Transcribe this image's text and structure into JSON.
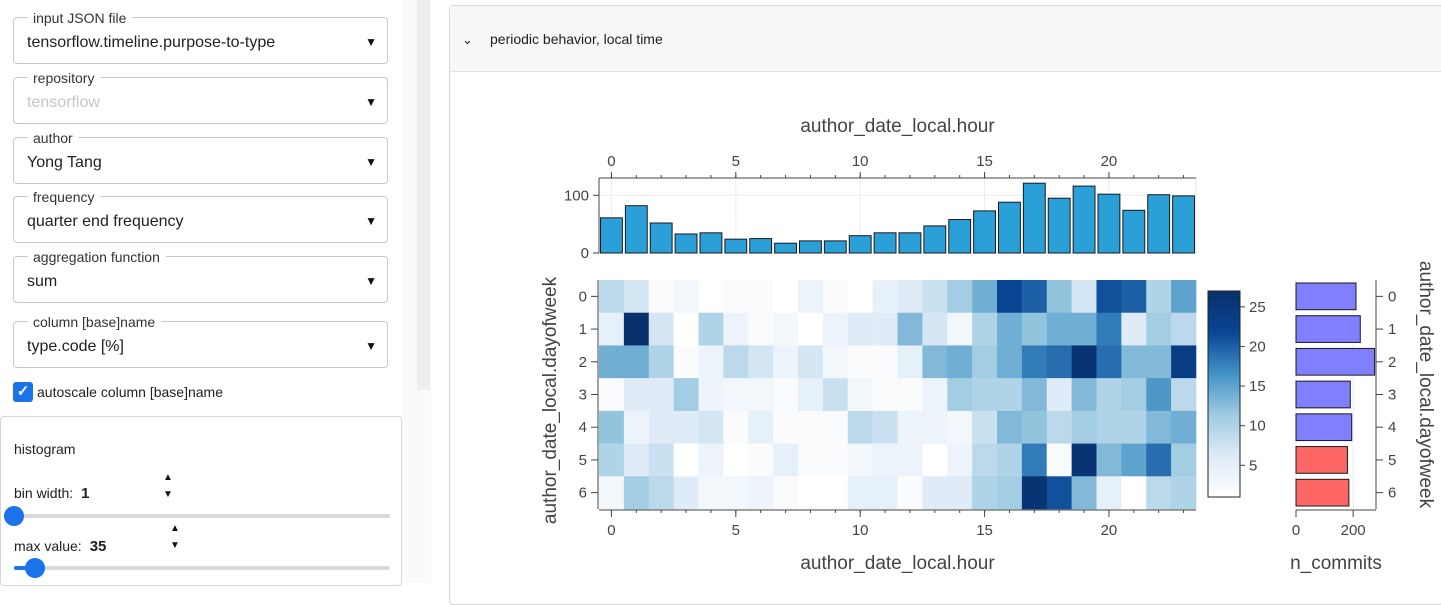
{
  "sidebar": {
    "fields": [
      {
        "label": "input JSON file",
        "value": "tensorflow.timeline.purpose-to-type",
        "disabled": false
      },
      {
        "label": "repository",
        "value": "tensorflow",
        "disabled": true
      },
      {
        "label": "author",
        "value": "Yong Tang",
        "disabled": false
      },
      {
        "label": "frequency",
        "value": "quarter end frequency",
        "disabled": false
      },
      {
        "label": "aggregation function",
        "value": "sum",
        "disabled": false
      },
      {
        "label": "column [base]name",
        "value": "type.code [%]",
        "disabled": false
      }
    ],
    "caret": "▼",
    "autoscale": {
      "checked": true,
      "mark": "✓",
      "label": "autoscale column [base]name"
    },
    "histogram": {
      "title": "histogram",
      "bin_width": {
        "label": "bin width:",
        "value": "1",
        "slider_fraction": 0.0
      },
      "max_value": {
        "label": "max value:",
        "value": "35",
        "slider_fraction": 0.055
      }
    },
    "spin_up": "▲",
    "spin_down": "▼"
  },
  "panel": {
    "chevron": "⌄",
    "title": "periodic behavior, local time"
  },
  "colors": {
    "accent": "#1a73e8",
    "bar": "#2b9fd8",
    "weekday": "#8080ff",
    "weekend": "#ff6666"
  },
  "chart_data": [
    {
      "type": "bar",
      "title": "author_date_local.hour",
      "x": [
        0,
        1,
        2,
        3,
        4,
        5,
        6,
        7,
        8,
        9,
        10,
        11,
        12,
        13,
        14,
        15,
        16,
        17,
        18,
        19,
        20,
        21,
        22,
        23
      ],
      "values": [
        61,
        82,
        52,
        33,
        35,
        24,
        25,
        17,
        21,
        21,
        30,
        35,
        35,
        47,
        58,
        73,
        88,
        121,
        95,
        116,
        102,
        74,
        101,
        99
      ],
      "xticks": [
        0,
        5,
        10,
        15,
        20
      ],
      "yticks": [
        0,
        100
      ],
      "ylim": [
        0,
        130
      ]
    },
    {
      "type": "heatmap",
      "xlabel": "author_date_local.hour",
      "ylabel": "author_date_local.dayofweek",
      "x": [
        0,
        1,
        2,
        3,
        4,
        5,
        6,
        7,
        8,
        9,
        10,
        11,
        12,
        13,
        14,
        15,
        16,
        17,
        18,
        19,
        20,
        21,
        22,
        23
      ],
      "y": [
        0,
        1,
        2,
        3,
        4,
        5,
        6
      ],
      "xticks": [
        0,
        5,
        10,
        15,
        20
      ],
      "values": [
        [
          9,
          7,
          2,
          3,
          1,
          2,
          2,
          1,
          4,
          2,
          1,
          5,
          6,
          8,
          11,
          14,
          22,
          20,
          12,
          7,
          21,
          20,
          10,
          15
        ],
        [
          5,
          27,
          7,
          1,
          10,
          4,
          2,
          3,
          1,
          4,
          6,
          6,
          13,
          7,
          3,
          10,
          14,
          12,
          14,
          14,
          18,
          6,
          11,
          9
        ],
        [
          14,
          14,
          10,
          2,
          4,
          9,
          7,
          4,
          7,
          3,
          2,
          2,
          5,
          13,
          14,
          11,
          14,
          18,
          19,
          26,
          19,
          13,
          13,
          24
        ],
        [
          2,
          6,
          6,
          11,
          4,
          3,
          3,
          2,
          5,
          8,
          3,
          2,
          2,
          4,
          11,
          10,
          10,
          13,
          6,
          13,
          10,
          11,
          16,
          9
        ],
        [
          12,
          4,
          6,
          6,
          7,
          2,
          5,
          2,
          2,
          2,
          9,
          8,
          4,
          4,
          3,
          8,
          13,
          12,
          9,
          11,
          10,
          10,
          13,
          14
        ],
        [
          10,
          6,
          8,
          1,
          4,
          1,
          2,
          5,
          2,
          2,
          3,
          4,
          4,
          1,
          4,
          9,
          10,
          18,
          2,
          26,
          13,
          15,
          19,
          11
        ],
        [
          3,
          11,
          9,
          6,
          3,
          3,
          4,
          2,
          1,
          1,
          5,
          5,
          2,
          6,
          6,
          10,
          11,
          26,
          21,
          13,
          5,
          1,
          9,
          10
        ]
      ],
      "colorbar": {
        "ticks": [
          5,
          10,
          15,
          20,
          25
        ],
        "range": [
          1,
          27
        ]
      }
    },
    {
      "type": "bar",
      "orientation": "horizontal",
      "xlabel": "n_commits",
      "ylabel": "author_date_local.dayofweek",
      "categories": [
        0,
        1,
        2,
        3,
        4,
        5,
        6
      ],
      "values": [
        210,
        225,
        275,
        190,
        195,
        180,
        185
      ],
      "xticks": [
        0,
        200
      ],
      "xlim": [
        0,
        280
      ]
    }
  ]
}
